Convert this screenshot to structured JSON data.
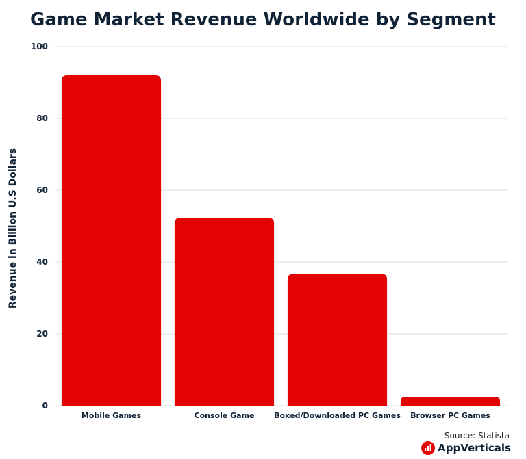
{
  "chart_data": {
    "type": "bar",
    "title": "Game Market Revenue Worldwide by Segment",
    "xlabel": "",
    "ylabel": "Revenue in Billion U.S Dollars",
    "categories": [
      "Mobile Games",
      "Console Game",
      "Boxed/Downloaded PC Games",
      "Browser PC Games"
    ],
    "values": [
      92,
      52.3,
      36.7,
      2.4
    ],
    "ylim": [
      0,
      100
    ],
    "yticks": [
      0,
      20,
      40,
      60,
      80,
      100
    ],
    "grid": true,
    "bar_color": "#e30303"
  },
  "footer": {
    "source": "Source: Statista",
    "brand": "AppVerticals",
    "brand_color": "#e30303"
  }
}
